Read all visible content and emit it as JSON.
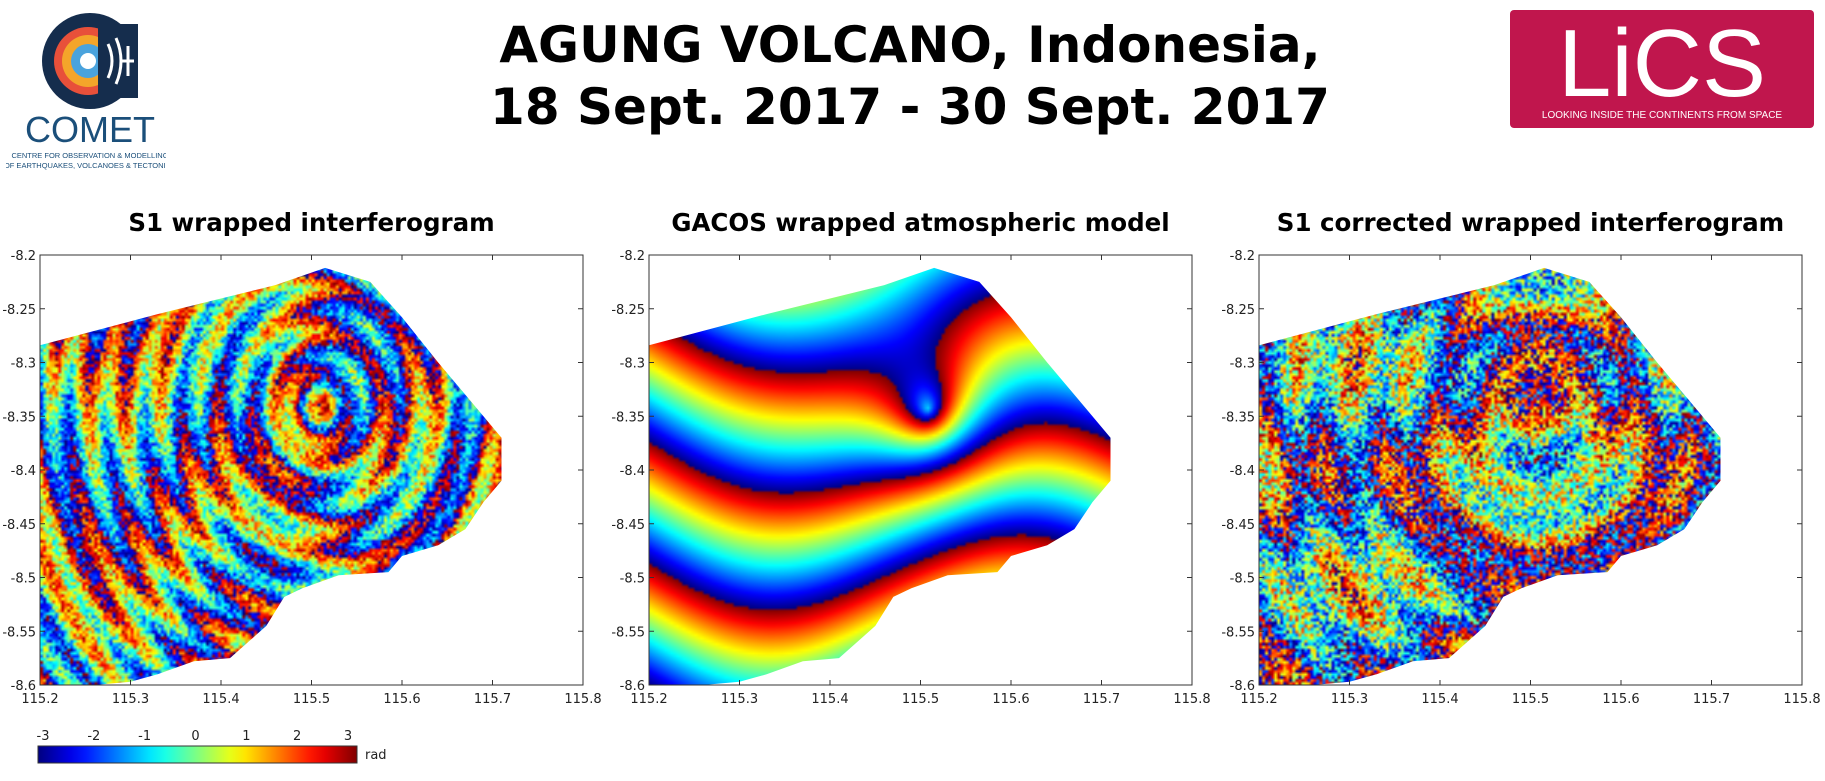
{
  "header": {
    "title_line1": "AGUNG VOLCANO, Indonesia,",
    "title_line2": "18 Sept. 2017 - 30 Sept. 2017"
  },
  "logos": {
    "comet": {
      "name": "COMET",
      "tagline1": "CENTRE FOR OBSERVATION & MODELLING",
      "tagline2": "OF EARTHQUAKES, VOLCANOES & TECTONICS",
      "name_color": "#1b4f7a"
    },
    "lics": {
      "name": "LiCS",
      "tagline": "LOOKING INSIDE THE CONTINENTS FROM SPACE",
      "background": "#c0164d"
    }
  },
  "chart_data": [
    {
      "type": "heatmap",
      "title": "S1 wrapped interferogram",
      "xlim": [
        115.2,
        115.8
      ],
      "ylim": [
        -8.6,
        -8.2
      ],
      "xticks": [
        "115.2",
        "115.3",
        "115.4",
        "115.5",
        "115.6",
        "115.7",
        "115.8"
      ],
      "yticks": [
        "-8.2",
        "-8.25",
        "-8.3",
        "-8.35",
        "-8.4",
        "-8.45",
        "-8.5",
        "-8.55",
        "-8.6"
      ],
      "pattern": "noisy"
    },
    {
      "type": "heatmap",
      "title": "GACOS wrapped atmospheric model",
      "xlim": [
        115.2,
        115.8
      ],
      "ylim": [
        -8.6,
        -8.2
      ],
      "xticks": [
        "115.2",
        "115.3",
        "115.4",
        "115.5",
        "115.6",
        "115.7",
        "115.8"
      ],
      "yticks": [
        "-8.2",
        "-8.25",
        "-8.3",
        "-8.35",
        "-8.4",
        "-8.45",
        "-8.5",
        "-8.55",
        "-8.6"
      ],
      "pattern": "smooth"
    },
    {
      "type": "heatmap",
      "title": "S1 corrected wrapped interferogram",
      "xlim": [
        115.2,
        115.8
      ],
      "ylim": [
        -8.6,
        -8.2
      ],
      "xticks": [
        "115.2",
        "115.3",
        "115.4",
        "115.5",
        "115.6",
        "115.7",
        "115.8"
      ],
      "yticks": [
        "-8.2",
        "-8.25",
        "-8.3",
        "-8.35",
        "-8.4",
        "-8.45",
        "-8.5",
        "-8.55",
        "-8.6"
      ],
      "pattern": "very-noisy"
    }
  ],
  "colorbar": {
    "min": -3,
    "max": 3,
    "ticks": [
      "-3",
      "-2",
      "-1",
      "0",
      "1",
      "2",
      "3"
    ],
    "unit": "rad",
    "colormap": "jet"
  },
  "region_outline": [
    [
      115.2,
      -8.284
    ],
    [
      115.33,
      -8.255
    ],
    [
      115.46,
      -8.228
    ],
    [
      115.515,
      -8.212
    ],
    [
      115.565,
      -8.225
    ],
    [
      115.6,
      -8.258
    ],
    [
      115.64,
      -8.3
    ],
    [
      115.67,
      -8.33
    ],
    [
      115.71,
      -8.37
    ],
    [
      115.71,
      -8.41
    ],
    [
      115.69,
      -8.43
    ],
    [
      115.67,
      -8.455
    ],
    [
      115.64,
      -8.47
    ],
    [
      115.6,
      -8.48
    ],
    [
      115.585,
      -8.495
    ],
    [
      115.53,
      -8.498
    ],
    [
      115.49,
      -8.51
    ],
    [
      115.47,
      -8.518
    ],
    [
      115.45,
      -8.545
    ],
    [
      115.43,
      -8.56
    ],
    [
      115.41,
      -8.575
    ],
    [
      115.37,
      -8.578
    ],
    [
      115.33,
      -8.59
    ],
    [
      115.3,
      -8.597
    ],
    [
      115.26,
      -8.6
    ],
    [
      115.2,
      -8.6
    ]
  ],
  "volcano_center": [
    115.508,
    -8.343
  ]
}
